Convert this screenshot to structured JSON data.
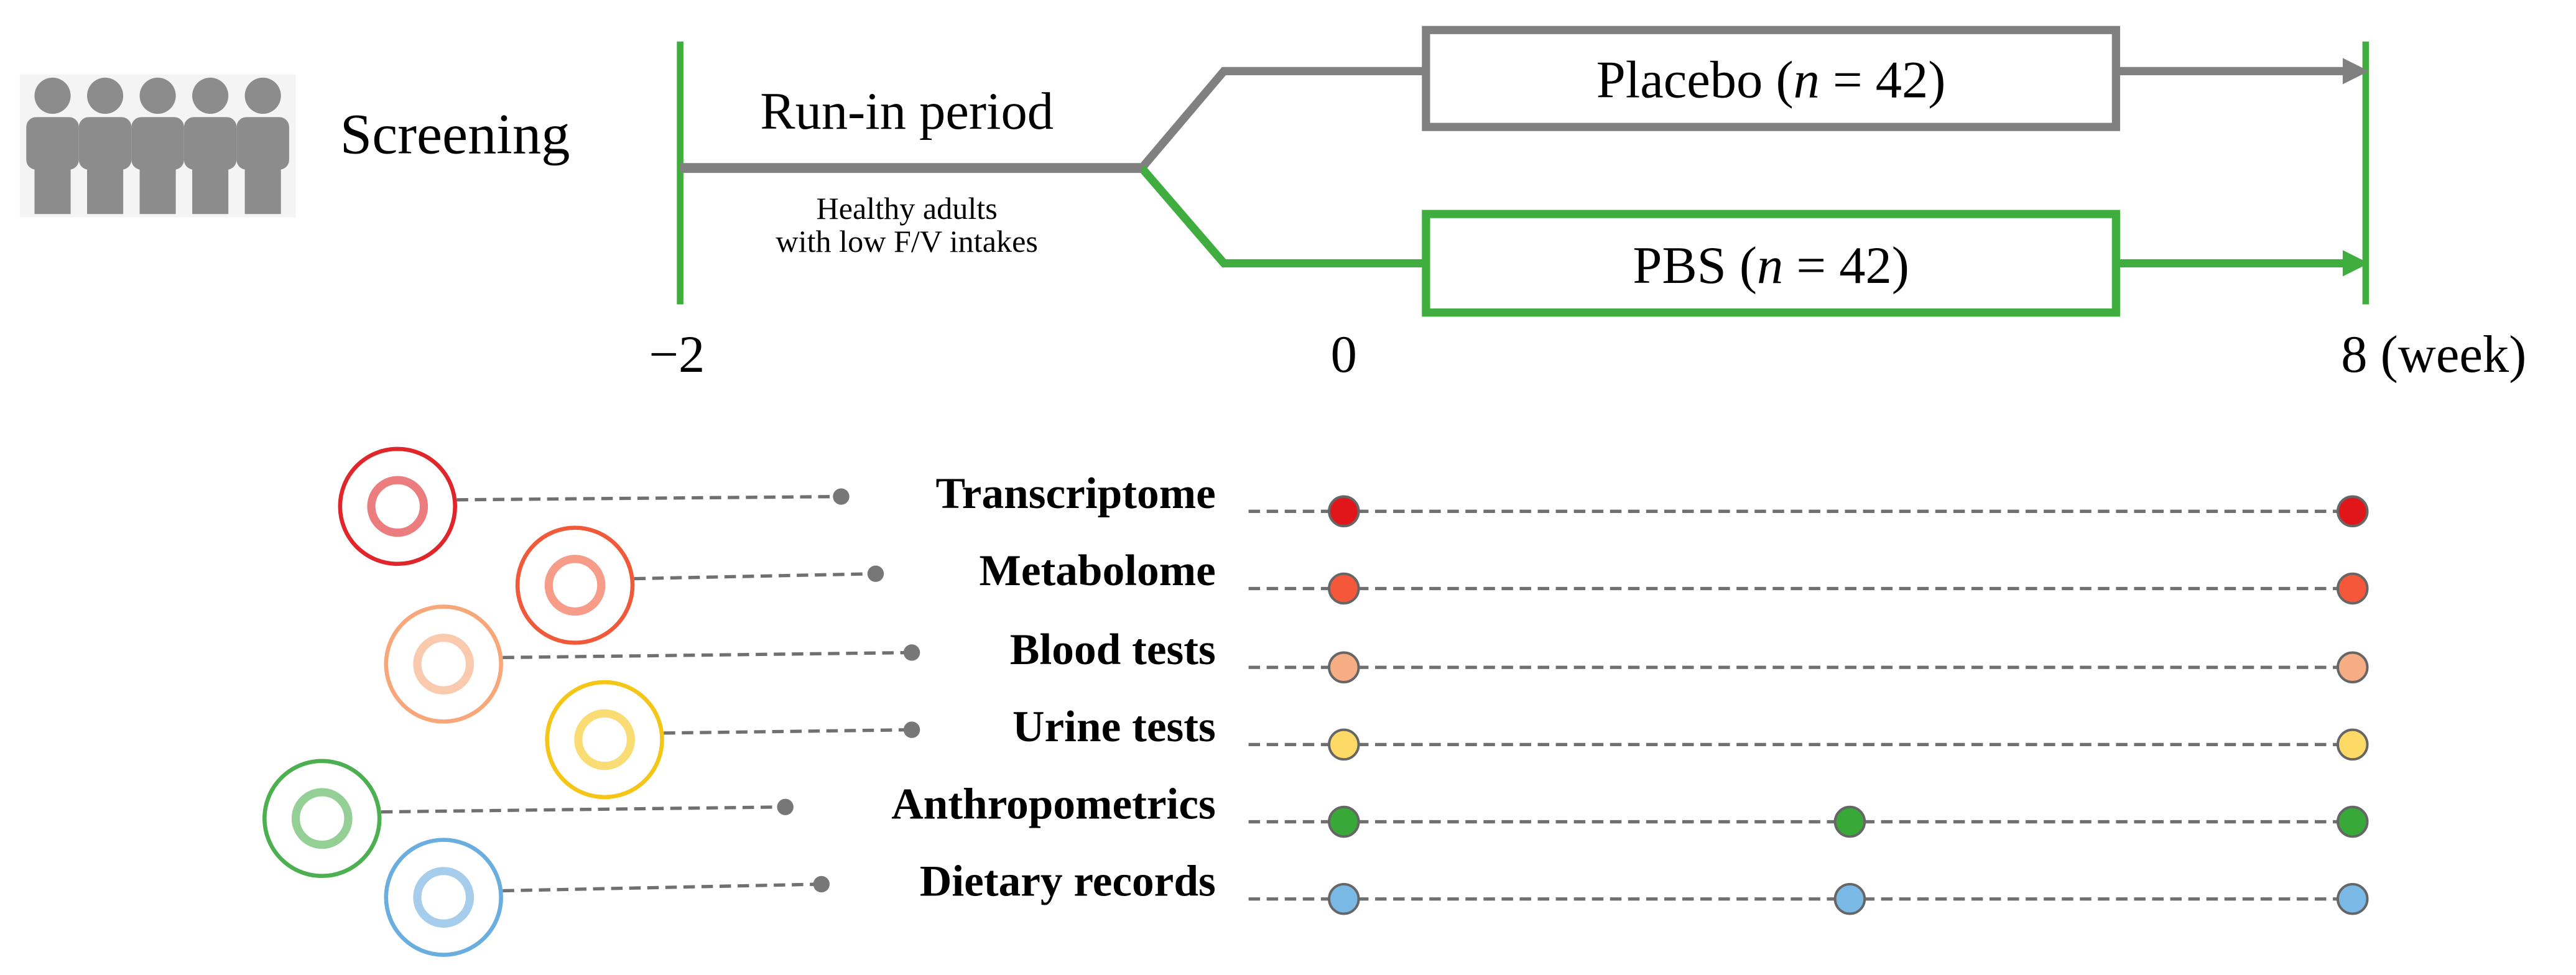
{
  "screening": "Screening",
  "run_in": {
    "title": "Run-in period",
    "note": [
      "Healthy adults",
      "with low F/V intakes"
    ]
  },
  "arms": [
    [
      "Placebo (",
      "n",
      " = 42)"
    ],
    [
      "PBS (",
      "n",
      " = 42)"
    ]
  ],
  "timeline": [
    "−2",
    "0",
    "8 (week)"
  ],
  "measures": [
    "Transcriptome",
    "Metabolome",
    "Blood tests",
    "Urine tests",
    "Anthropometrics",
    "Dietary records"
  ]
}
